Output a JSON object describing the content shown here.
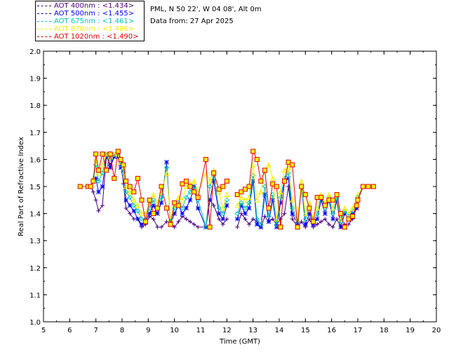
{
  "info": {
    "site_line": "PML, N 50 22', W 04 08', Alt 0m",
    "date_line": "Data from: 27 Apr 2025"
  },
  "legend": [
    {
      "label": "AOT  400nm : <1.434>",
      "color": "#4b0082"
    },
    {
      "label": "AOT  500nm : <1.455>",
      "color": "#0000ff"
    },
    {
      "label": "AOT  675nm : <1.461>",
      "color": "#00c8b4"
    },
    {
      "label": "AOT  870nm : <1.486>",
      "color": "#f0f000"
    },
    {
      "label": "AOT 1020nm : <1.490>",
      "color": "#e60000"
    }
  ],
  "chart_data": {
    "type": "line",
    "xlabel": "Time (GMT)",
    "ylabel": "Real Part of Refractive Index",
    "xlim": [
      5,
      20
    ],
    "ylim": [
      1.0,
      2.0
    ],
    "xticks": [
      "5",
      "6",
      "7",
      "8",
      "9",
      "10",
      "11",
      "12",
      "13",
      "14",
      "15",
      "16",
      "17",
      "18",
      "19",
      "20"
    ],
    "yticks": [
      "1.0",
      "1.1",
      "1.2",
      "1.3",
      "1.4",
      "1.5",
      "1.6",
      "1.7",
      "1.8",
      "1.9",
      "2.0"
    ],
    "grid": false,
    "legend_position": "top-left outside",
    "series": [
      {
        "name": "AOT  400nm : <1.434>",
        "color": "#4b0082",
        "marker": "plus",
        "x": [
          6.4,
          6.7,
          6.8,
          6.9,
          7.0,
          7.1,
          7.25,
          7.4,
          7.55,
          7.7,
          7.85,
          7.95,
          8.05,
          8.15,
          8.3,
          8.45,
          8.6,
          8.75,
          8.9,
          9.05,
          9.2,
          9.35,
          9.5,
          9.7,
          9.85,
          10.0,
          10.15,
          10.3,
          10.45,
          10.6,
          10.75,
          10.9,
          11.2,
          11.35,
          11.5,
          11.7,
          11.85,
          12.0,
          12.4,
          12.55,
          12.7,
          12.85,
          13.0,
          13.15,
          13.3,
          13.45,
          13.6,
          13.75,
          13.9,
          14.05,
          14.2,
          14.35,
          14.5,
          14.7,
          14.85,
          15.0,
          15.15,
          15.3,
          15.45,
          15.6,
          15.75,
          15.9,
          16.05,
          16.2,
          16.35,
          16.5,
          16.65,
          16.8,
          16.95,
          17.0,
          17.2,
          17.4,
          17.6
        ],
        "y": [
          1.5,
          1.5,
          1.5,
          1.48,
          1.45,
          1.41,
          1.43,
          1.61,
          1.58,
          1.61,
          1.62,
          1.59,
          1.51,
          1.42,
          1.4,
          1.38,
          1.38,
          1.35,
          1.36,
          1.39,
          1.38,
          1.35,
          1.35,
          1.37,
          1.37,
          1.35,
          1.37,
          1.39,
          1.38,
          1.37,
          1.36,
          1.35,
          1.35,
          1.45,
          1.43,
          1.38,
          1.36,
          1.38,
          1.35,
          1.4,
          1.38,
          1.36,
          1.38,
          1.37,
          1.35,
          1.39,
          1.37,
          1.38,
          1.36,
          1.38,
          1.4,
          1.5,
          1.38,
          1.35,
          1.37,
          1.35,
          1.38,
          1.35,
          1.36,
          1.37,
          1.38,
          1.36,
          1.35,
          1.38,
          1.35,
          1.36,
          1.36,
          1.38,
          1.42,
          1.45,
          1.5,
          1.5,
          1.5
        ]
      },
      {
        "name": "AOT  500nm : <1.455>",
        "color": "#0000ff",
        "marker": "star",
        "x": [
          6.4,
          6.7,
          6.8,
          6.9,
          7.0,
          7.1,
          7.25,
          7.4,
          7.55,
          7.7,
          7.85,
          7.95,
          8.05,
          8.15,
          8.3,
          8.45,
          8.6,
          8.75,
          8.9,
          9.05,
          9.2,
          9.35,
          9.5,
          9.7,
          9.85,
          10.0,
          10.15,
          10.3,
          10.45,
          10.6,
          10.75,
          10.9,
          11.2,
          11.35,
          11.5,
          11.7,
          11.85,
          12.0,
          12.4,
          12.55,
          12.7,
          12.85,
          13.0,
          13.15,
          13.3,
          13.45,
          13.6,
          13.75,
          13.9,
          14.05,
          14.2,
          14.35,
          14.5,
          14.7,
          14.85,
          15.0,
          15.15,
          15.3,
          15.45,
          15.6,
          15.75,
          15.9,
          16.05,
          16.2,
          16.35,
          16.5,
          16.65,
          16.8,
          16.95,
          17.0,
          17.2,
          17.4,
          17.6
        ],
        "y": [
          1.5,
          1.5,
          1.5,
          1.52,
          1.53,
          1.48,
          1.5,
          1.62,
          1.57,
          1.61,
          1.61,
          1.57,
          1.56,
          1.45,
          1.43,
          1.41,
          1.38,
          1.36,
          1.37,
          1.4,
          1.43,
          1.4,
          1.44,
          1.59,
          1.36,
          1.4,
          1.43,
          1.4,
          1.42,
          1.45,
          1.5,
          1.42,
          1.35,
          1.45,
          1.52,
          1.4,
          1.38,
          1.43,
          1.38,
          1.43,
          1.4,
          1.42,
          1.52,
          1.36,
          1.35,
          1.47,
          1.37,
          1.45,
          1.35,
          1.44,
          1.52,
          1.53,
          1.4,
          1.36,
          1.5,
          1.36,
          1.4,
          1.36,
          1.38,
          1.45,
          1.4,
          1.45,
          1.38,
          1.45,
          1.35,
          1.4,
          1.38,
          1.4,
          1.42,
          1.45,
          1.5,
          1.5,
          1.5
        ]
      },
      {
        "name": "AOT  675nm : <1.461>",
        "color": "#00c8b4",
        "marker": "diamond",
        "x": [
          6.4,
          6.7,
          6.8,
          6.9,
          7.0,
          7.1,
          7.25,
          7.4,
          7.55,
          7.7,
          7.85,
          7.95,
          8.05,
          8.15,
          8.3,
          8.45,
          8.6,
          8.75,
          8.9,
          9.05,
          9.2,
          9.35,
          9.5,
          9.7,
          9.85,
          10.0,
          10.15,
          10.3,
          10.45,
          10.6,
          10.75,
          10.9,
          11.2,
          11.35,
          11.5,
          11.7,
          11.85,
          12.0,
          12.4,
          12.55,
          12.7,
          12.85,
          13.0,
          13.15,
          13.3,
          13.45,
          13.6,
          13.75,
          13.9,
          14.05,
          14.2,
          14.35,
          14.5,
          14.7,
          14.85,
          15.0,
          15.15,
          15.3,
          15.45,
          15.6,
          15.75,
          15.9,
          16.05,
          16.2,
          16.35,
          16.5,
          16.65,
          16.8,
          16.95,
          17.0,
          17.2,
          17.4,
          17.6
        ],
        "y": [
          1.5,
          1.5,
          1.5,
          1.52,
          1.58,
          1.52,
          1.55,
          1.62,
          1.6,
          1.62,
          1.61,
          1.58,
          1.55,
          1.48,
          1.46,
          1.43,
          1.41,
          1.38,
          1.38,
          1.42,
          1.45,
          1.42,
          1.46,
          1.57,
          1.37,
          1.42,
          1.44,
          1.42,
          1.46,
          1.48,
          1.5,
          1.45,
          1.35,
          1.5,
          1.54,
          1.42,
          1.4,
          1.45,
          1.4,
          1.44,
          1.42,
          1.44,
          1.54,
          1.38,
          1.36,
          1.5,
          1.39,
          1.47,
          1.36,
          1.46,
          1.53,
          1.55,
          1.42,
          1.37,
          1.5,
          1.38,
          1.42,
          1.37,
          1.4,
          1.46,
          1.42,
          1.46,
          1.4,
          1.46,
          1.37,
          1.41,
          1.39,
          1.41,
          1.43,
          1.46,
          1.5,
          1.5,
          1.5
        ]
      },
      {
        "name": "AOT  870nm : <1.486>",
        "color": "#f0f000",
        "marker": "triangle",
        "x": [
          6.4,
          6.7,
          6.8,
          6.9,
          7.0,
          7.1,
          7.25,
          7.4,
          7.55,
          7.7,
          7.85,
          7.95,
          8.05,
          8.15,
          8.3,
          8.45,
          8.6,
          8.75,
          8.9,
          9.05,
          9.2,
          9.35,
          9.5,
          9.7,
          9.85,
          10.0,
          10.15,
          10.3,
          10.45,
          10.6,
          10.75,
          10.9,
          11.2,
          11.35,
          11.5,
          11.7,
          11.85,
          12.0,
          12.4,
          12.55,
          12.7,
          12.85,
          13.0,
          13.15,
          13.3,
          13.45,
          13.6,
          13.75,
          13.9,
          14.05,
          14.2,
          14.35,
          14.5,
          14.7,
          14.85,
          15.0,
          15.15,
          15.3,
          15.45,
          15.6,
          15.75,
          15.9,
          16.05,
          16.2,
          16.35,
          16.5,
          16.65,
          16.8,
          16.95,
          17.0,
          17.2,
          17.4,
          17.6
        ],
        "y": [
          1.5,
          1.5,
          1.5,
          1.53,
          1.6,
          1.55,
          1.58,
          1.62,
          1.61,
          1.62,
          1.62,
          1.59,
          1.57,
          1.5,
          1.48,
          1.45,
          1.43,
          1.4,
          1.4,
          1.44,
          1.47,
          1.44,
          1.48,
          1.55,
          1.38,
          1.43,
          1.46,
          1.45,
          1.5,
          1.51,
          1.52,
          1.48,
          1.55,
          1.52,
          1.56,
          1.48,
          1.42,
          1.47,
          1.43,
          1.46,
          1.45,
          1.46,
          1.58,
          1.45,
          1.48,
          1.56,
          1.58,
          1.53,
          1.38,
          1.48,
          1.56,
          1.57,
          1.45,
          1.38,
          1.52,
          1.4,
          1.44,
          1.38,
          1.42,
          1.47,
          1.44,
          1.47,
          1.42,
          1.47,
          1.38,
          1.42,
          1.4,
          1.42,
          1.44,
          1.47,
          1.5,
          1.5,
          1.5
        ]
      },
      {
        "name": "AOT 1020nm : <1.490>",
        "color": "#e60000",
        "marker": "square",
        "x": [
          6.4,
          6.7,
          6.8,
          6.9,
          7.0,
          7.1,
          7.25,
          7.4,
          7.55,
          7.7,
          7.85,
          7.95,
          8.05,
          8.15,
          8.3,
          8.45,
          8.6,
          8.75,
          8.9,
          9.05,
          9.2,
          9.35,
          9.5,
          9.7,
          9.85,
          10.0,
          10.15,
          10.3,
          10.45,
          10.6,
          10.75,
          10.9,
          11.2,
          11.35,
          11.5,
          11.7,
          11.85,
          12.0,
          12.4,
          12.55,
          12.7,
          12.85,
          13.0,
          13.15,
          13.3,
          13.45,
          13.6,
          13.75,
          13.9,
          14.05,
          14.2,
          14.35,
          14.5,
          14.7,
          14.85,
          15.0,
          15.15,
          15.3,
          15.45,
          15.6,
          15.75,
          15.9,
          16.05,
          16.2,
          16.35,
          16.5,
          16.65,
          16.8,
          16.95,
          17.0,
          17.2,
          17.4,
          17.6
        ],
        "y": [
          1.5,
          1.5,
          1.5,
          1.52,
          1.62,
          1.56,
          1.62,
          1.56,
          1.62,
          1.53,
          1.63,
          1.6,
          1.58,
          1.52,
          1.5,
          1.48,
          1.53,
          1.45,
          1.37,
          1.45,
          1.4,
          1.42,
          1.5,
          1.42,
          1.36,
          1.44,
          1.43,
          1.51,
          1.52,
          1.5,
          1.48,
          1.46,
          1.6,
          1.35,
          1.55,
          1.49,
          1.5,
          1.52,
          1.47,
          1.48,
          1.49,
          1.5,
          1.63,
          1.6,
          1.52,
          1.56,
          1.42,
          1.51,
          1.5,
          1.35,
          1.52,
          1.59,
          1.58,
          1.35,
          1.5,
          1.47,
          1.42,
          1.37,
          1.46,
          1.46,
          1.43,
          1.45,
          1.45,
          1.47,
          1.4,
          1.35,
          1.38,
          1.39,
          1.43,
          1.45,
          1.5,
          1.5,
          1.5
        ]
      }
    ]
  }
}
